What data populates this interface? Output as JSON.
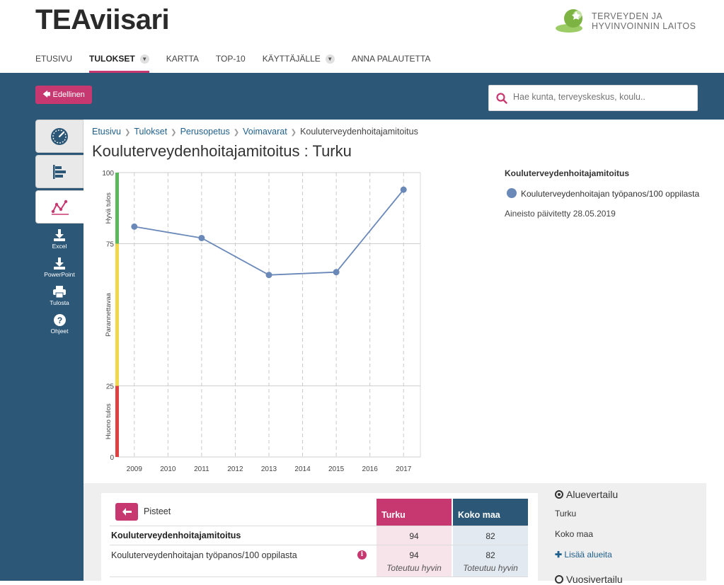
{
  "header": {
    "logo": "TEAviisari",
    "org_line1": "TERVEYDEN JA",
    "org_line2": "HYVINVOINNIN LAITOS"
  },
  "nav": {
    "items": [
      {
        "label": "ETUSIVU"
      },
      {
        "label": "TULOKSET"
      },
      {
        "label": "KARTTA"
      },
      {
        "label": "TOP-10"
      },
      {
        "label": "KÄYTTÄJÄLLE"
      },
      {
        "label": "ANNA PALAUTETTA"
      }
    ]
  },
  "toolbar": {
    "prev_label": "Edellinen",
    "search_placeholder": "Hae kunta, terveyskeskus, koulu.."
  },
  "side_actions": {
    "excel": "Excel",
    "powerpoint": "PowerPoint",
    "print": "Tulosta",
    "help": "Ohjeet"
  },
  "breadcrumb": [
    "Etusivu",
    "Tulokset",
    "Perusopetus",
    "Voimavarat",
    "Kouluterveydenhoitajamitoitus"
  ],
  "page_title": "Kouluterveydenhoitajamitoitus : Turku",
  "legend": {
    "title": "Kouluterveydenhoitajamitoitus",
    "series": "Kouluterveydenhoitajan työpanos/100 oppilasta",
    "updated": "Aineisto päivitetty 28.05.2019"
  },
  "chart_data": {
    "type": "line",
    "x": [
      2009,
      2010,
      2011,
      2012,
      2013,
      2014,
      2015,
      2016,
      2017
    ],
    "series": [
      {
        "name": "Kouluterveydenhoitajan työpanos/100 oppilasta",
        "points": [
          [
            2009,
            81
          ],
          [
            2011,
            77
          ],
          [
            2013,
            64
          ],
          [
            2015,
            65
          ],
          [
            2017,
            94
          ]
        ]
      }
    ],
    "ylim": [
      0,
      100
    ],
    "yticks": [
      0,
      25,
      75,
      100
    ],
    "bands": [
      {
        "label": "Hyvä tulos",
        "from": 75,
        "to": 100,
        "color": "#5cb85c"
      },
      {
        "label": "Parannettavaa",
        "from": 25,
        "to": 75,
        "color": "#f0d84a"
      },
      {
        "label": "Huono tulos",
        "from": 0,
        "to": 25,
        "color": "#e04040"
      }
    ],
    "line_color": "#6a89b8",
    "grid": true
  },
  "table": {
    "back_label": "Pisteet",
    "col_turku": "Turku",
    "col_koko": "Koko maa",
    "rows": [
      {
        "label": "Kouluterveydenhoitajamitoitus",
        "turku": "94",
        "koko": "82"
      },
      {
        "label": "Kouluterveydenhoitajan työpanos/100 oppilasta",
        "turku": "94",
        "koko": "82",
        "turku_sub": "Toteutuu hyvin",
        "koko_sub": "Toteutuu hyvin"
      }
    ]
  },
  "compare": {
    "title": "Aluevertailu",
    "areas": [
      "Turku",
      "Koko maa"
    ],
    "add_label": "Lisää alueita",
    "year_title": "Vuosivertailu"
  }
}
